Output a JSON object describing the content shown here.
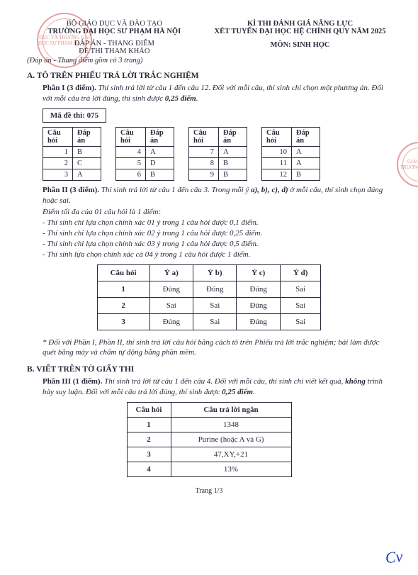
{
  "stamps": {
    "topLeft": "DỤC VÀ TRƯỜNG ĐẠI HỌC SƯ PHẠM HÀ NỘI",
    "right": "GIÁO DỤC TRƯỜNG ĐẠI SƯ"
  },
  "header": {
    "left": {
      "line1": "BỘ GIÁO DỤC VÀ ĐÀO TẠO",
      "line2": "TRƯỜNG ĐẠI HỌC SƯ PHẠM HÀ NỘI",
      "line3": "ĐÁP ÁN - THANG ĐIỂM",
      "line4": "ĐỀ THI THAM KHẢO",
      "line5": "(Đáp án - Thang điểm gồm có 3 trang)"
    },
    "right": {
      "line1": "KÌ THI ĐÁNH GIÁ NĂNG LỰC",
      "line2": "XÉT TUYỂN ĐẠI HỌC HỆ CHÍNH QUY NĂM 2025",
      "line3": "MÔN: SINH HỌC"
    }
  },
  "sectionA": {
    "title": "A. TÔ TRÊN PHIẾU TRẢ LỜI TRẮC NGHIỆM",
    "part1": {
      "label": "Phần I (3 điểm).",
      "text": "Thí sinh trả lời từ câu 1 đến câu 12. Đối với mỗi câu, thí sinh chỉ chọn một phương án. Đối với mỗi câu trả lời đúng, thí sinh được",
      "scoreBold": "0,25 điểm",
      "maDeLabel": "Mã đề thi: 075",
      "colQ": "Câu hỏi",
      "colA": "Đáp án",
      "tables": [
        [
          {
            "q": "1",
            "a": "B"
          },
          {
            "q": "2",
            "a": "C"
          },
          {
            "q": "3",
            "a": "A"
          }
        ],
        [
          {
            "q": "4",
            "a": "A"
          },
          {
            "q": "5",
            "a": "D"
          },
          {
            "q": "6",
            "a": "B"
          }
        ],
        [
          {
            "q": "7",
            "a": "A"
          },
          {
            "q": "8",
            "a": "B"
          },
          {
            "q": "9",
            "a": "B"
          }
        ],
        [
          {
            "q": "10",
            "a": "A"
          },
          {
            "q": "11",
            "a": "A"
          },
          {
            "q": "12",
            "a": "B"
          }
        ]
      ]
    },
    "part2": {
      "label": "Phần II (3 điểm).",
      "text1": "Thí sinh trả lời từ câu 1 đến câu 3. Trong mỗi ý",
      "text1b": "a), b), c), d)",
      "text1c": "ở mỗi câu, thí sinh chọn đúng hoặc sai.",
      "note0": "Điểm tối đa của 01 câu hỏi là 1 điểm:",
      "notes": [
        "- Thí sinh chỉ lựa chọn chính xác 01 ý trong 1 câu hỏi được 0,1 điểm.",
        "- Thí sinh chỉ lựa chọn chính xác 02 ý trong 1 câu hỏi được 0,25 điểm.",
        "- Thí sinh chỉ lựa chọn chính xác 03 ý trong 1 câu hỏi được 0,5 điểm.",
        "- Thí sinh lựa chọn chính xác cả 04 ý trong 1 câu hỏi được 1 điểm."
      ],
      "headers": {
        "q": "Câu hỏi",
        "a": "Ý a)",
        "b": "Ý b)",
        "c": "Ý c)",
        "d": "Ý d)"
      },
      "rows": [
        {
          "q": "1",
          "a": "Đúng",
          "b": "Đúng",
          "c": "Đúng",
          "d": "Sai"
        },
        {
          "q": "2",
          "a": "Sai",
          "b": "Sai",
          "c": "Đúng",
          "d": "Sai"
        },
        {
          "q": "3",
          "a": "Đúng",
          "b": "Sai",
          "c": "Đúng",
          "d": "Sai"
        }
      ]
    },
    "noteStar": "* Đối với Phần I, Phần II, thí sinh trả lời câu hỏi bằng cách tô trên Phiếu trả lời trắc nghiệm; bài làm được quét bằng máy và chấm tự động bằng phần mềm."
  },
  "sectionB": {
    "title": "B. VIẾT TRÊN TỜ GIẤY THI",
    "part3": {
      "label": "Phần III (1 điểm).",
      "text1": "Thí sinh trả lời từ câu 1 đến câu 4. Đối với mỗi câu, thí sinh chỉ viết kết quả,",
      "textBold": "không",
      "text2": "trình bày suy luận. Đối với mỗi câu trả lời đúng, thí sinh được",
      "scoreBold": "0,25 điểm",
      "headers": {
        "q": "Câu hỏi",
        "ans": "Câu trả lời ngắn"
      },
      "rows": [
        {
          "q": "1",
          "ans": "1348"
        },
        {
          "q": "2",
          "ans": "Purine (hoặc A và G)"
        },
        {
          "q": "3",
          "ans": "47,XY,+21"
        },
        {
          "q": "4",
          "ans": "13%"
        }
      ]
    }
  },
  "footer": "Trang 1/3",
  "signature": "Cv"
}
